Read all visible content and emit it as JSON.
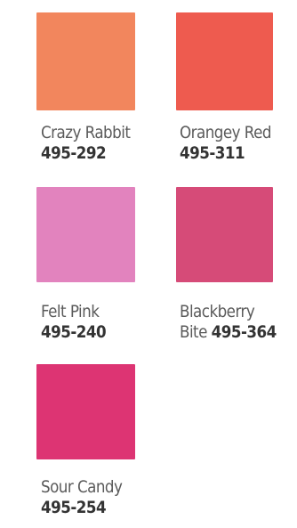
{
  "swatches": [
    {
      "name": "Crazy Rabbit",
      "name_line1": "Crazy Rabbit",
      "name_line2": "",
      "code": "495-292",
      "color": "#F2865D"
    },
    {
      "name": "Orangey Red",
      "name_line1": "Orangey Red",
      "name_line2": "",
      "code": "495-311",
      "color": "#EE5B4F"
    },
    {
      "name": "Felt Pink",
      "name_line1": "Felt Pink",
      "name_line2": "",
      "code": "495-240",
      "color": "#E283BE"
    },
    {
      "name": "Blackberry Bite",
      "name_line1": "Blackberry",
      "name_line2": "Bite",
      "code": "495-364",
      "color": "#D64B78"
    },
    {
      "name": "Sour Candy",
      "name_line1": "Sour Candy",
      "name_line2": "",
      "code": "495-254",
      "color": "#DD3473"
    }
  ]
}
